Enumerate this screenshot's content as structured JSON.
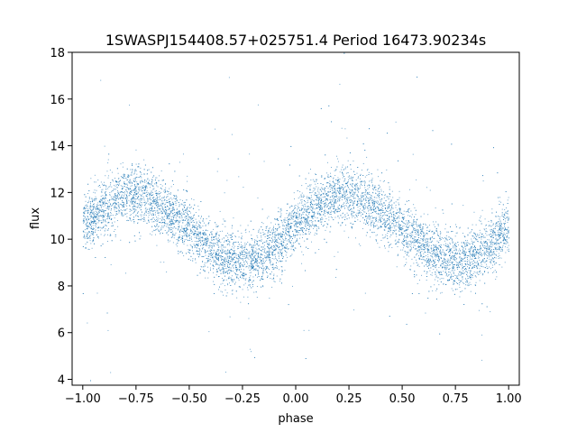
{
  "chart_data": {
    "type": "scatter",
    "title": "1SWASPJ154408.57+025751.4 Period 16473.90234s",
    "xlabel": "phase",
    "ylabel": "flux",
    "xlim": [
      -1.05,
      1.05
    ],
    "ylim": [
      3.75,
      18.0
    ],
    "xticks": [
      -1.0,
      -0.75,
      -0.5,
      -0.25,
      0.0,
      0.25,
      0.5,
      0.75,
      1.0
    ],
    "xtick_labels": [
      "−1.00",
      "−0.75",
      "−0.50",
      "−0.25",
      "0.00",
      "0.25",
      "0.50",
      "0.75",
      "1.00"
    ],
    "yticks": [
      4,
      6,
      8,
      10,
      12,
      14,
      16,
      18
    ],
    "ytick_labels": [
      "4",
      "6",
      "8",
      "10",
      "12",
      "14",
      "16",
      "18"
    ],
    "grid": false,
    "marker_color": "#1f77b4",
    "series": [
      {
        "phase": [
          -1.0,
          -0.9,
          -0.8,
          -0.75,
          -0.7,
          -0.6,
          -0.5,
          -0.4,
          -0.3,
          -0.25,
          -0.2,
          -0.1,
          0.0,
          0.1,
          0.2,
          0.25,
          0.3,
          0.4,
          0.5,
          0.6,
          0.7,
          0.75,
          0.8,
          0.9,
          1.0
        ],
        "flux_center": [
          10.6,
          11.4,
          11.9,
          12.0,
          11.8,
          11.2,
          10.4,
          9.6,
          9.1,
          9.0,
          9.1,
          9.7,
          10.6,
          11.4,
          11.9,
          12.0,
          11.8,
          11.2,
          10.4,
          9.6,
          9.1,
          9.0,
          9.1,
          9.7,
          10.6
        ],
        "band_half_width": 1.1
      }
    ]
  }
}
